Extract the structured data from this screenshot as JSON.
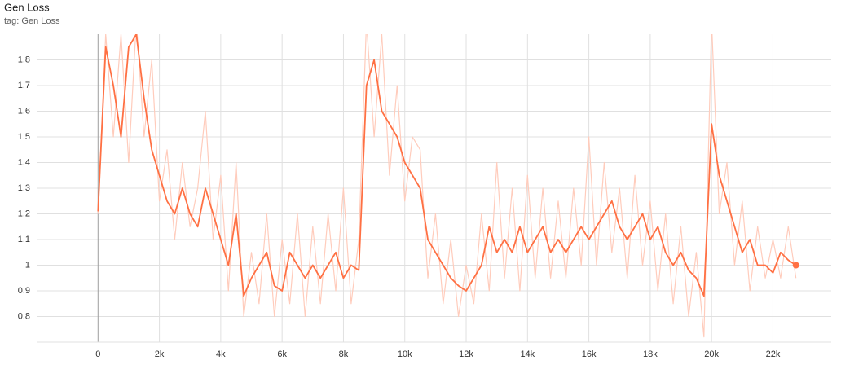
{
  "chart_data": {
    "type": "line",
    "title": "Gen Loss",
    "subtitle": "tag: Gen Loss",
    "x": [
      0,
      250,
      500,
      750,
      1000,
      1250,
      1500,
      1750,
      2000,
      2250,
      2500,
      2750,
      3000,
      3250,
      3500,
      3750,
      4000,
      4250,
      4500,
      4750,
      5000,
      5250,
      5500,
      5750,
      6000,
      6250,
      6500,
      6750,
      7000,
      7250,
      7500,
      7750,
      8000,
      8250,
      8500,
      8750,
      9000,
      9250,
      9500,
      9750,
      10000,
      10250,
      10500,
      10750,
      11000,
      11250,
      11500,
      11750,
      12000,
      12250,
      12500,
      12750,
      13000,
      13250,
      13500,
      13750,
      14000,
      14250,
      14500,
      14750,
      15000,
      15250,
      15500,
      15750,
      16000,
      16250,
      16500,
      16750,
      17000,
      17250,
      17500,
      17750,
      18000,
      18250,
      18500,
      18750,
      19000,
      19250,
      19500,
      19750,
      20000,
      20250,
      20500,
      20750,
      21000,
      21250,
      21500,
      21750,
      22000,
      22250,
      22500,
      22750
    ],
    "series": [
      {
        "color": "#ffccbc",
        "values": [
          1.2,
          1.9,
          1.5,
          1.9,
          1.4,
          1.95,
          1.5,
          1.8,
          1.25,
          1.45,
          1.1,
          1.4,
          1.15,
          1.3,
          1.6,
          1.1,
          1.35,
          0.9,
          1.4,
          0.8,
          1.05,
          0.85,
          1.2,
          0.8,
          1.1,
          0.85,
          1.2,
          0.8,
          1.15,
          0.85,
          1.2,
          0.9,
          1.3,
          0.85,
          1.1,
          1.95,
          1.5,
          1.9,
          1.35,
          1.7,
          1.25,
          1.5,
          1.45,
          0.95,
          1.2,
          0.85,
          1.1,
          0.8,
          1.0,
          0.85,
          1.2,
          0.9,
          1.4,
          0.95,
          1.3,
          0.9,
          1.35,
          0.95,
          1.3,
          0.95,
          1.25,
          0.95,
          1.3,
          1.0,
          1.5,
          1.0,
          1.4,
          1.05,
          1.3,
          0.95,
          1.35,
          1.0,
          1.25,
          0.9,
          1.2,
          0.85,
          1.15,
          0.8,
          1.05,
          0.72,
          1.95,
          1.2,
          1.4,
          1.0,
          1.25,
          0.9,
          1.15,
          0.95,
          1.1,
          0.95,
          1.15,
          0.95
        ]
      },
      {
        "color": "#ff7043",
        "values": [
          1.21,
          1.85,
          1.7,
          1.5,
          1.85,
          1.9,
          1.65,
          1.45,
          1.35,
          1.25,
          1.2,
          1.3,
          1.2,
          1.15,
          1.3,
          1.2,
          1.1,
          1.0,
          1.2,
          0.88,
          0.95,
          1.0,
          1.05,
          0.92,
          0.9,
          1.05,
          1.0,
          0.95,
          1.0,
          0.95,
          1.0,
          1.05,
          0.95,
          1.0,
          0.98,
          1.7,
          1.8,
          1.6,
          1.55,
          1.5,
          1.4,
          1.35,
          1.3,
          1.1,
          1.05,
          1.0,
          0.95,
          0.92,
          0.9,
          0.95,
          1.0,
          1.15,
          1.05,
          1.1,
          1.05,
          1.15,
          1.05,
          1.1,
          1.15,
          1.05,
          1.1,
          1.05,
          1.1,
          1.15,
          1.1,
          1.15,
          1.2,
          1.25,
          1.15,
          1.1,
          1.15,
          1.2,
          1.1,
          1.15,
          1.05,
          1.0,
          1.05,
          0.98,
          0.95,
          0.88,
          1.55,
          1.35,
          1.25,
          1.15,
          1.05,
          1.1,
          1.0,
          1.0,
          0.97,
          1.05,
          1.02,
          1.0
        ]
      }
    ],
    "xlim": [
      -2000,
      23900
    ],
    "ylim": [
      0.7,
      1.9
    ],
    "xticks": [
      0,
      {
        "value": 2000,
        "label": "2k"
      },
      {
        "value": 4000,
        "label": "4k"
      },
      {
        "value": 6000,
        "label": "6k"
      },
      {
        "value": 8000,
        "label": "8k"
      },
      {
        "value": 10000,
        "label": "10k"
      },
      {
        "value": 12000,
        "label": "12k"
      },
      {
        "value": 14000,
        "label": "14k"
      },
      {
        "value": 16000,
        "label": "16k"
      },
      {
        "value": 18000,
        "label": "18k"
      },
      {
        "value": 20000,
        "label": "20k"
      },
      {
        "value": 22000,
        "label": "22k"
      }
    ],
    "yticks": [
      0.8,
      0.9,
      1,
      1.1,
      1.2,
      1.3,
      1.4,
      1.5,
      1.6,
      1.7,
      1.8
    ],
    "grid": true
  }
}
